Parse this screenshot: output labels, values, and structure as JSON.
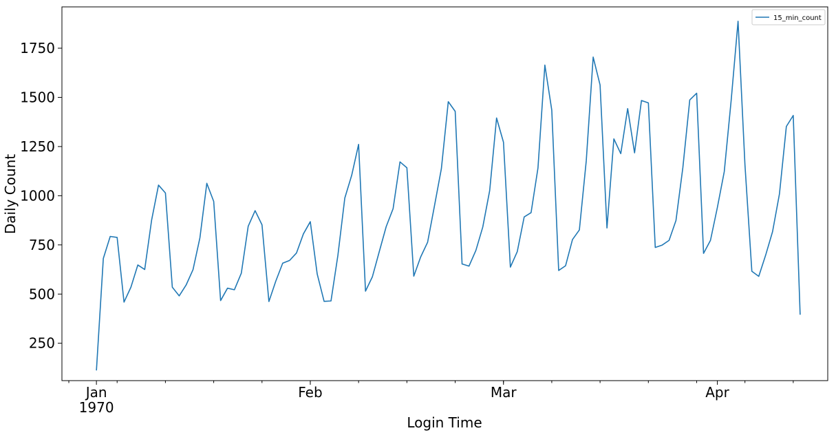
{
  "chart_data": {
    "type": "line",
    "title": "",
    "xlabel": "Login Time",
    "ylabel": "Daily Count",
    "x_start": "1970-01-01",
    "x_end": "1970-04-13",
    "xlim": [
      "1969-12-27",
      "1970-04-17"
    ],
    "ylim": [
      60,
      1960
    ],
    "y_ticks": [
      250,
      500,
      750,
      1000,
      1250,
      1500,
      1750
    ],
    "x_major_ticks": [
      {
        "date": "1970-01-01",
        "label": "Jan",
        "sublabel": "1970"
      },
      {
        "date": "1970-02-01",
        "label": "Feb",
        "sublabel": ""
      },
      {
        "date": "1970-03-01",
        "label": "Mar",
        "sublabel": ""
      },
      {
        "date": "1970-04-01",
        "label": "Apr",
        "sublabel": ""
      }
    ],
    "legend": {
      "position": "top-right",
      "entries": [
        "15_min_count"
      ]
    },
    "grid": false,
    "series": [
      {
        "name": "15_min_count",
        "color": "#1f77b4",
        "values": [
          112,
          681,
          793,
          788,
          459,
          535,
          648,
          625,
          876,
          1054,
          1014,
          535,
          491,
          546,
          624,
          786,
          1063,
          971,
          467,
          530,
          522,
          606,
          845,
          924,
          852,
          462,
          566,
          657,
          671,
          709,
          806,
          868,
          602,
          463,
          465,
          697,
          988,
          1104,
          1261,
          515,
          588,
          716,
          843,
          934,
          1172,
          1142,
          591,
          689,
          763,
          949,
          1138,
          1478,
          1429,
          653,
          642,
          722,
          841,
          1026,
          1395,
          1272,
          637,
          716,
          892,
          914,
          1141,
          1664,
          1435,
          620,
          644,
          777,
          826,
          1178,
          1705,
          1563,
          836,
          1289,
          1214,
          1443,
          1218,
          1484,
          1472,
          737,
          749,
          773,
          874,
          1143,
          1487,
          1521,
          707,
          773,
          940,
          1122,
          1484,
          1887,
          1157,
          616,
          590,
          698,
          817,
          1009,
          1352,
          1408,
          395
        ]
      }
    ]
  }
}
